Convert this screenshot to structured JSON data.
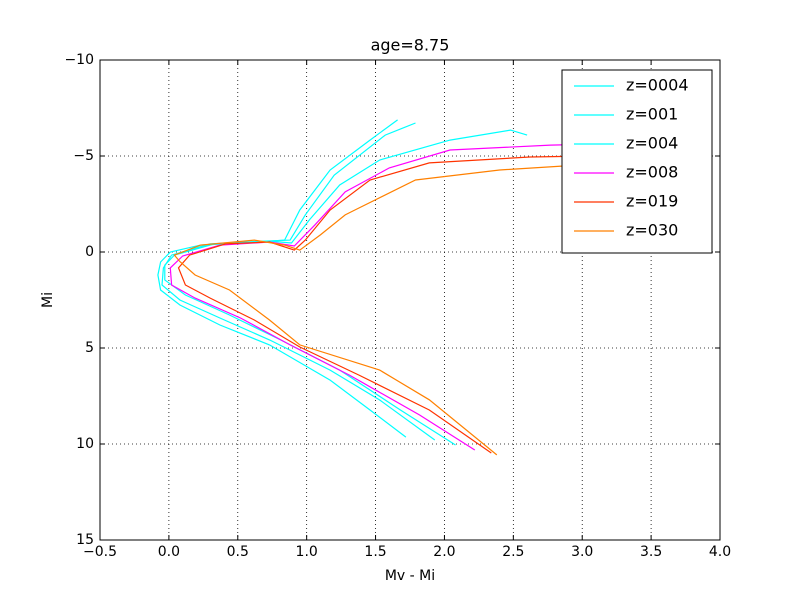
{
  "chart_data": {
    "type": "line",
    "title": "age=8.75",
    "xlabel": "Mv - Mi",
    "ylabel": "Mi",
    "xlim": [
      -0.5,
      4.0
    ],
    "ylim": [
      15,
      -10
    ],
    "grid": true,
    "legend": "upper right",
    "xticks": [
      {
        "value": -0.5,
        "label": "−0.5"
      },
      {
        "value": 0,
        "label": "0.0"
      },
      0.5,
      {
        "value": 1,
        "label": "1.0"
      },
      1.5,
      {
        "value": 2,
        "label": "2.0"
      },
      2.5,
      {
        "value": 3,
        "label": "3.0"
      },
      3.5,
      {
        "value": 4,
        "label": "4.0"
      }
    ],
    "yticks": [
      {
        "value": -10,
        "label": "−10"
      },
      {
        "value": -5,
        "label": "−5"
      },
      0,
      5,
      10,
      15
    ],
    "series": [
      {
        "name": "z=0004",
        "color": "#00ffff",
        "x": [
          1.72,
          1.46,
          1.17,
          0.73,
          0.37,
          0.08,
          -0.06,
          -0.08,
          -0.06,
          0.01,
          0.23,
          0.66,
          0.84,
          0.95,
          1.17,
          1.46,
          1.66
        ],
        "values": [
          9.64,
          8.23,
          6.67,
          4.84,
          3.8,
          2.76,
          1.98,
          1.2,
          0.52,
          0,
          -0.36,
          -0.52,
          -0.62,
          -2.19,
          -4.27,
          -5.83,
          -6.88
        ]
      },
      {
        "name": "z=001",
        "color": "#00ffff",
        "x": [
          1.93,
          1.53,
          1.17,
          0.73,
          0.37,
          0.08,
          -0.05,
          -0.04,
          0.02,
          0.3,
          0.7,
          0.88,
          0.99,
          1.2,
          1.57,
          1.79
        ],
        "values": [
          9.79,
          7.71,
          6.15,
          4.58,
          3.44,
          2.5,
          1.72,
          0.83,
          0.16,
          -0.42,
          -0.57,
          -0.62,
          -1.93,
          -4.0,
          -6.09,
          -6.72
        ]
      },
      {
        "name": "z=004",
        "color": "#00ffff",
        "x": [
          2.08,
          1.68,
          1.24,
          0.81,
          0.44,
          0.12,
          -0.03,
          -0.03,
          0.04,
          0.33,
          0.73,
          0.89,
          1.02,
          1.24,
          1.53,
          2.04,
          2.48,
          2.6
        ],
        "values": [
          10.05,
          8.23,
          6.15,
          4.58,
          3.28,
          2.24,
          1.46,
          0.68,
          0.16,
          -0.42,
          -0.57,
          -0.47,
          -1.67,
          -3.49,
          -4.79,
          -5.83,
          -6.35,
          -6.09
        ]
      },
      {
        "name": "z=008",
        "color": "#ff00ff",
        "x": [
          2.22,
          1.82,
          1.31,
          0.88,
          0.52,
          0.19,
          0.02,
          0.01,
          0.1,
          0.37,
          0.73,
          0.91,
          1.06,
          1.28,
          1.6,
          2.04,
          2.77,
          3.49
        ],
        "values": [
          10.31,
          8.49,
          6.41,
          4.84,
          3.44,
          2.4,
          1.72,
          0.83,
          0.21,
          -0.36,
          -0.52,
          -0.31,
          -1.41,
          -3.13,
          -4.38,
          -5.31,
          -5.57,
          -5.68
        ]
      },
      {
        "name": "z=019",
        "color": "#ff3300",
        "x": [
          2.34,
          1.89,
          1.38,
          0.95,
          0.62,
          0.3,
          0.12,
          0.07,
          0.15,
          0.41,
          0.73,
          0.91,
          0.99,
          1.17,
          1.46,
          1.89,
          2.62,
          3.49
        ],
        "values": [
          10.47,
          8.23,
          6.41,
          4.95,
          3.54,
          2.4,
          1.72,
          0.83,
          0.16,
          -0.42,
          -0.52,
          -0.1,
          -0.62,
          -2.19,
          -3.75,
          -4.64,
          -4.95,
          -5.05
        ]
      },
      {
        "name": "z=030",
        "color": "#ff8000",
        "x": [
          2.38,
          1.89,
          1.53,
          0.95,
          0.73,
          0.44,
          0.19,
          0.08,
          0.04,
          0.23,
          0.62,
          0.84,
          0.95,
          1.1,
          1.28,
          1.35,
          1.79,
          2.4,
          2.98,
          3.85
        ],
        "values": [
          10.57,
          7.7,
          6.15,
          4.84,
          3.54,
          1.98,
          1.2,
          0.5,
          0.16,
          -0.36,
          -0.62,
          -0.36,
          -0.1,
          -0.89,
          -1.93,
          -2.19,
          -3.75,
          -4.27,
          -4.53,
          -4.58
        ]
      }
    ]
  }
}
